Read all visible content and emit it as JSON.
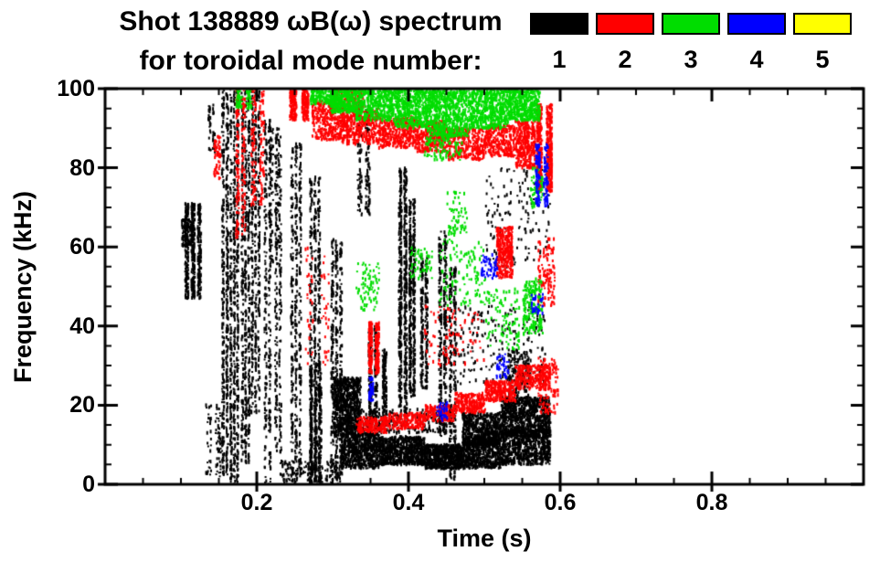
{
  "header": {
    "title_line1": "Shot 138889 ωB(ω) spectrum",
    "title_line2": "for toroidal mode number:"
  },
  "legend": {
    "items": [
      {
        "label": "1",
        "color": "#000000"
      },
      {
        "label": "2",
        "color": "#ff0000"
      },
      {
        "label": "3",
        "color": "#00dd00"
      },
      {
        "label": "4",
        "color": "#0000ff"
      },
      {
        "label": "5",
        "color": "#ffff00"
      }
    ]
  },
  "chart_data": {
    "type": "scatter",
    "title": "Shot 138889 ωB(ω) spectrum for toroidal mode number",
    "xlabel": "Time (s)",
    "ylabel": "Frequency (kHz)",
    "xlim": [
      0,
      1.0
    ],
    "ylim": [
      0,
      100
    ],
    "xticks": [
      {
        "v": 0.2,
        "label": "0.2"
      },
      {
        "v": 0.4,
        "label": "0.4"
      },
      {
        "v": 0.6,
        "label": "0.6"
      },
      {
        "v": 0.8,
        "label": "0.8"
      }
    ],
    "yticks": [
      {
        "v": 0,
        "label": "0"
      },
      {
        "v": 20,
        "label": "20"
      },
      {
        "v": 40,
        "label": "40"
      },
      {
        "v": 60,
        "label": "60"
      },
      {
        "v": 80,
        "label": "80"
      },
      {
        "v": 100,
        "label": "100"
      }
    ],
    "x_minor_step": 0.05,
    "y_minor_step": 5,
    "grid": false,
    "legend_position": "top-right",
    "cluster_format": [
      "t_start_s",
      "t_end_s",
      "freq_lo_kHz",
      "freq_hi_kHz",
      "n_points",
      "striation_columns"
    ],
    "series": [
      {
        "name": "n=1",
        "color": "#000000",
        "clusters": [
          [
            0.103,
            0.128,
            47,
            71,
            520,
            3
          ],
          [
            0.1,
            0.116,
            60,
            67,
            90,
            0
          ],
          [
            0.134,
            0.146,
            84,
            96,
            45,
            2
          ],
          [
            0.13,
            0.155,
            2,
            20,
            80,
            2
          ],
          [
            0.152,
            0.163,
            2,
            100,
            450,
            2
          ],
          [
            0.163,
            0.176,
            0,
            100,
            560,
            3
          ],
          [
            0.178,
            0.191,
            5,
            100,
            520,
            3
          ],
          [
            0.191,
            0.204,
            18,
            100,
            400,
            3
          ],
          [
            0.208,
            0.219,
            0,
            92,
            280,
            2
          ],
          [
            0.222,
            0.233,
            8,
            88,
            210,
            2
          ],
          [
            0.243,
            0.259,
            0,
            86,
            400,
            3
          ],
          [
            0.268,
            0.284,
            0,
            78,
            430,
            3
          ],
          [
            0.268,
            0.286,
            0,
            30,
            320,
            3
          ],
          [
            0.296,
            0.313,
            0,
            62,
            360,
            3
          ],
          [
            0.3,
            0.336,
            12,
            27,
            750,
            0
          ],
          [
            0.31,
            0.36,
            4,
            13,
            650,
            0
          ],
          [
            0.36,
            0.42,
            5,
            12,
            750,
            0
          ],
          [
            0.42,
            0.47,
            4,
            10,
            650,
            0
          ],
          [
            0.47,
            0.52,
            4,
            12,
            650,
            0
          ],
          [
            0.52,
            0.586,
            5,
            14,
            750,
            0
          ],
          [
            0.47,
            0.52,
            10,
            18,
            550,
            0
          ],
          [
            0.52,
            0.586,
            12,
            22,
            850,
            0
          ],
          [
            0.33,
            0.46,
            13,
            19,
            300,
            0
          ],
          [
            0.345,
            0.36,
            14,
            40,
            230,
            2
          ],
          [
            0.363,
            0.373,
            18,
            34,
            130,
            1
          ],
          [
            0.385,
            0.399,
            18,
            80,
            520,
            2
          ],
          [
            0.399,
            0.409,
            22,
            72,
            400,
            2
          ],
          [
            0.414,
            0.426,
            24,
            58,
            230,
            2
          ],
          [
            0.438,
            0.451,
            12,
            64,
            300,
            2
          ],
          [
            0.452,
            0.463,
            0,
            55,
            230,
            2
          ],
          [
            0.33,
            0.351,
            68,
            96,
            170,
            2
          ],
          [
            0.46,
            0.58,
            25,
            45,
            190,
            0
          ],
          [
            0.5,
            0.586,
            55,
            80,
            150,
            0
          ],
          [
            0.215,
            0.231,
            55,
            90,
            110,
            2
          ],
          [
            0.23,
            0.31,
            0,
            6,
            160,
            0
          ],
          [
            0.53,
            0.56,
            20,
            34,
            200,
            0
          ]
        ]
      },
      {
        "name": "n=2",
        "color": "#ff0000",
        "clusters": [
          [
            0.24,
            0.272,
            92,
            100,
            270,
            2
          ],
          [
            0.272,
            0.31,
            87,
            97,
            310,
            0
          ],
          [
            0.31,
            0.36,
            86,
            95,
            390,
            0
          ],
          [
            0.36,
            0.41,
            85,
            93,
            390,
            0
          ],
          [
            0.41,
            0.45,
            84,
            92,
            330,
            0
          ],
          [
            0.45,
            0.5,
            82,
            90,
            310,
            0
          ],
          [
            0.5,
            0.54,
            83,
            91,
            290,
            0
          ],
          [
            0.54,
            0.566,
            80,
            92,
            310,
            0
          ],
          [
            0.566,
            0.592,
            74,
            96,
            540,
            2
          ],
          [
            0.17,
            0.186,
            62,
            100,
            170,
            2
          ],
          [
            0.19,
            0.212,
            70,
            100,
            150,
            2
          ],
          [
            0.14,
            0.156,
            77,
            88,
            60,
            1
          ],
          [
            0.33,
            0.37,
            13,
            17,
            190,
            0
          ],
          [
            0.37,
            0.42,
            14,
            18,
            210,
            0
          ],
          [
            0.42,
            0.46,
            16,
            20,
            170,
            0
          ],
          [
            0.46,
            0.5,
            18,
            23,
            230,
            0
          ],
          [
            0.5,
            0.54,
            21,
            26,
            250,
            0
          ],
          [
            0.54,
            0.586,
            24,
            30,
            270,
            0
          ],
          [
            0.345,
            0.363,
            28,
            41,
            230,
            2
          ],
          [
            0.515,
            0.536,
            52,
            65,
            330,
            0
          ],
          [
            0.42,
            0.5,
            30,
            45,
            95,
            0
          ],
          [
            0.57,
            0.592,
            45,
            62,
            130,
            0
          ],
          [
            0.57,
            0.596,
            18,
            32,
            110,
            0
          ],
          [
            0.3,
            0.34,
            94,
            100,
            160,
            0
          ],
          [
            0.26,
            0.3,
            30,
            60,
            60,
            2
          ]
        ]
      },
      {
        "name": "n=3",
        "color": "#00dd00",
        "clusters": [
          [
            0.295,
            0.33,
            94,
            101,
            420,
            0
          ],
          [
            0.33,
            0.38,
            92,
            101,
            520,
            0
          ],
          [
            0.38,
            0.43,
            90,
            101,
            570,
            0
          ],
          [
            0.43,
            0.48,
            88,
            101,
            620,
            0
          ],
          [
            0.48,
            0.53,
            90,
            101,
            570,
            0
          ],
          [
            0.53,
            0.572,
            92,
            101,
            520,
            0
          ],
          [
            0.27,
            0.295,
            96,
            101,
            160,
            0
          ],
          [
            0.17,
            0.196,
            95,
            101,
            90,
            2
          ],
          [
            0.42,
            0.47,
            82,
            90,
            130,
            0
          ],
          [
            0.33,
            0.36,
            44,
            56,
            75,
            0
          ],
          [
            0.4,
            0.43,
            52,
            60,
            55,
            0
          ],
          [
            0.44,
            0.5,
            45,
            62,
            115,
            0
          ],
          [
            0.5,
            0.545,
            34,
            50,
            95,
            0
          ],
          [
            0.55,
            0.576,
            38,
            52,
            190,
            0
          ],
          [
            0.45,
            0.476,
            63,
            74,
            65,
            0
          ],
          [
            0.56,
            0.576,
            70,
            80,
            55,
            0
          ]
        ]
      },
      {
        "name": "n=4",
        "color": "#0000ff",
        "clusters": [
          [
            0.565,
            0.586,
            70,
            86,
            170,
            2
          ],
          [
            0.345,
            0.356,
            21,
            27,
            45,
            1
          ],
          [
            0.495,
            0.516,
            52,
            58,
            55,
            0
          ],
          [
            0.515,
            0.531,
            27,
            33,
            45,
            0
          ],
          [
            0.435,
            0.451,
            16,
            21,
            35,
            0
          ],
          [
            0.56,
            0.576,
            43,
            48,
            35,
            0
          ]
        ]
      },
      {
        "name": "n=5",
        "color": "#ffff00",
        "clusters": []
      }
    ]
  }
}
